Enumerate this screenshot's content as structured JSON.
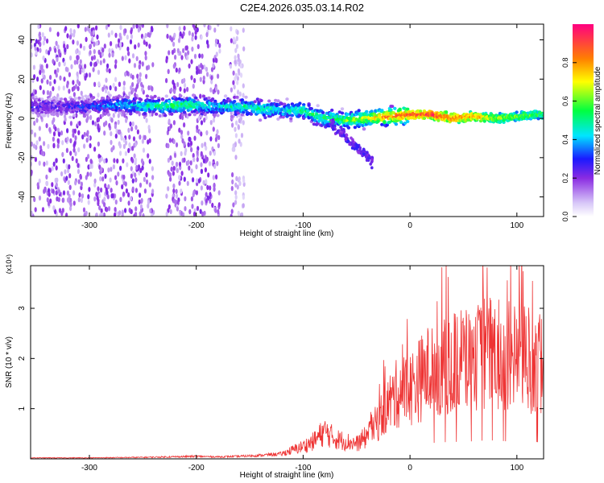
{
  "title": "C2E4.2026.035.03.14.R02",
  "chart_data": [
    {
      "type": "heatmap",
      "xlabel": "Height of straight line (km)",
      "ylabel": "Frequency (Hz)",
      "xlim": [
        -355,
        125
      ],
      "ylim": [
        -50,
        48
      ],
      "xticks": [
        -300,
        -200,
        -100,
        0,
        100
      ],
      "yticks": [
        -40,
        -20,
        0,
        20,
        40
      ],
      "colorbar": {
        "label": "Normalized spectral amplitude",
        "range": [
          0,
          1
        ],
        "ticks": [
          "0.0",
          "0.2",
          "0.4",
          "0.6",
          "0.8"
        ],
        "tick_values": [
          0,
          0.2,
          0.4,
          0.6,
          0.8
        ]
      },
      "ridge": {
        "x": [
          -330,
          -300,
          -270,
          -240,
          -210,
          -180,
          -160,
          -140,
          -120,
          -100,
          -80,
          -60,
          -40,
          -20,
          0,
          20,
          40,
          60,
          80,
          100,
          125
        ],
        "y": [
          6,
          6,
          7,
          6,
          7,
          6,
          6,
          5,
          4,
          4,
          0,
          -1,
          0,
          1,
          2,
          2,
          0,
          1,
          0,
          1,
          2
        ],
        "amplitude": [
          0.25,
          0.3,
          0.4,
          0.5,
          0.55,
          0.45,
          0.5,
          0.5,
          0.45,
          0.5,
          0.55,
          0.6,
          0.7,
          0.85,
          0.9,
          0.92,
          0.85,
          0.8,
          0.65,
          0.6,
          0.55
        ]
      }
    },
    {
      "type": "line",
      "ylabel": "SNR (10 * v/v)",
      "xlabel": "Height of straight line (km)",
      "y_multiplier": "(x10⁴)",
      "xlim": [
        -355,
        125
      ],
      "ylim": [
        0,
        3.85
      ],
      "xticks": [
        -300,
        -200,
        -100,
        0,
        100
      ],
      "yticks": [
        1,
        2,
        3
      ],
      "line_color": "#ee3333",
      "series": [
        {
          "x": [
            -355,
            -300,
            -250,
            -200,
            -180,
            -160,
            -140,
            -120,
            -100,
            -90,
            -80,
            -70,
            -60,
            -50,
            -40,
            -30,
            -20,
            -10,
            0,
            10,
            20,
            30,
            40,
            50,
            60,
            70,
            80,
            90,
            100,
            110,
            120,
            125
          ],
          "y": [
            0.02,
            0.02,
            0.03,
            0.05,
            0.04,
            0.05,
            0.07,
            0.1,
            0.25,
            0.35,
            0.55,
            0.4,
            0.35,
            0.3,
            0.45,
            0.75,
            1.1,
            1.35,
            1.4,
            1.6,
            1.8,
            1.9,
            1.9,
            2.0,
            2.0,
            2.1,
            2.1,
            2.0,
            2.1,
            2.0,
            1.9,
            1.9
          ]
        }
      ]
    }
  ]
}
